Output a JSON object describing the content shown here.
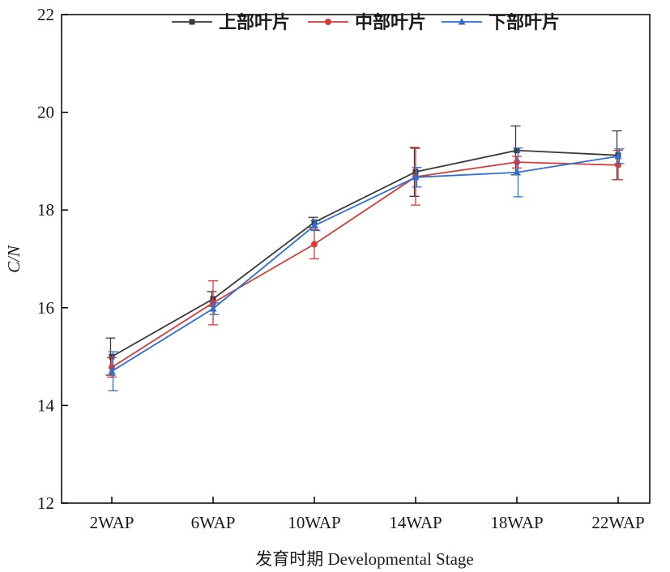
{
  "chart_data": {
    "type": "line",
    "categories": [
      "2WAP",
      "6WAP",
      "10WAP",
      "14WAP",
      "18WAP",
      "22WAP"
    ],
    "xlabel": "发育时期 Developmental Stage",
    "ylabel": "C/N",
    "ylim": [
      12,
      22
    ],
    "yticks": [
      12,
      14,
      16,
      18,
      20,
      22
    ],
    "grid": false,
    "legend_position": "top",
    "series": [
      {
        "name": "上部叶片",
        "color": "#3a3a3a",
        "marker": "square",
        "values": [
          15.0,
          16.18,
          17.75,
          18.78,
          19.22,
          19.12
        ],
        "errors": [
          0.38,
          0.15,
          0.1,
          0.5,
          0.5,
          0.5
        ]
      },
      {
        "name": "中部叶片",
        "color": "#d63a3a",
        "marker": "circle",
        "values": [
          14.78,
          16.1,
          17.3,
          18.68,
          18.98,
          18.92
        ],
        "errors": [
          0.2,
          0.45,
          0.3,
          0.58,
          0.12,
          0.3
        ]
      },
      {
        "name": "下部叶片",
        "color": "#2f6fcf",
        "marker": "triangle",
        "values": [
          14.7,
          15.98,
          17.68,
          18.67,
          18.77,
          19.1
        ],
        "errors": [
          0.4,
          0.12,
          0.1,
          0.2,
          0.5,
          0.15
        ]
      }
    ]
  }
}
